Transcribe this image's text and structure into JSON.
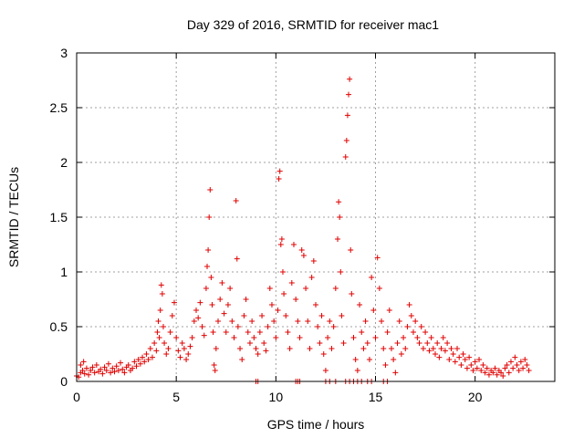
{
  "chart_data": {
    "type": "scatter",
    "title": "Day 329 of 2016, SRMTID for receiver mac1",
    "xlabel": "GPS time / hours",
    "ylabel": "SRMTID / TECUs",
    "xlim": [
      0,
      24
    ],
    "ylim": [
      0,
      3
    ],
    "xticks": [
      0,
      5,
      10,
      15,
      20
    ],
    "xtick_labels": [
      "0",
      "5",
      "10",
      "15",
      "20"
    ],
    "yticks": [
      0,
      0.5,
      1,
      1.5,
      2,
      2.5,
      3
    ],
    "ytick_labels": [
      "0",
      "0.5",
      "1",
      "1.5",
      "2",
      "2.5",
      "3"
    ],
    "grid": true,
    "legend": "none",
    "marker": "plus",
    "color": "#e00000",
    "series": [
      {
        "name": "SRMTID",
        "points": [
          [
            0.0,
            0.05
          ],
          [
            0.1,
            0.04
          ],
          [
            0.2,
            0.08
          ],
          [
            0.2,
            0.15
          ],
          [
            0.3,
            0.1
          ],
          [
            0.35,
            0.18
          ],
          [
            0.4,
            0.07
          ],
          [
            0.5,
            0.12
          ],
          [
            0.6,
            0.06
          ],
          [
            0.7,
            0.1
          ],
          [
            0.8,
            0.13
          ],
          [
            0.9,
            0.08
          ],
          [
            1.0,
            0.15
          ],
          [
            1.1,
            0.09
          ],
          [
            1.2,
            0.11
          ],
          [
            1.3,
            0.07
          ],
          [
            1.4,
            0.13
          ],
          [
            1.5,
            0.1
          ],
          [
            1.6,
            0.16
          ],
          [
            1.7,
            0.08
          ],
          [
            1.8,
            0.12
          ],
          [
            1.9,
            0.09
          ],
          [
            2.0,
            0.14
          ],
          [
            2.1,
            0.1
          ],
          [
            2.2,
            0.17
          ],
          [
            2.3,
            0.11
          ],
          [
            2.4,
            0.08
          ],
          [
            2.5,
            0.13
          ],
          [
            2.6,
            0.15
          ],
          [
            2.7,
            0.1
          ],
          [
            2.8,
            0.12
          ],
          [
            2.9,
            0.18
          ],
          [
            3.0,
            0.14
          ],
          [
            3.1,
            0.2
          ],
          [
            3.2,
            0.16
          ],
          [
            3.3,
            0.22
          ],
          [
            3.4,
            0.18
          ],
          [
            3.5,
            0.25
          ],
          [
            3.6,
            0.2
          ],
          [
            3.7,
            0.3
          ],
          [
            3.8,
            0.22
          ],
          [
            3.9,
            0.35
          ],
          [
            4.0,
            0.28
          ],
          [
            4.05,
            0.45
          ],
          [
            4.1,
            0.55
          ],
          [
            4.15,
            0.4
          ],
          [
            4.2,
            0.65
          ],
          [
            4.25,
            0.88
          ],
          [
            4.3,
            0.8
          ],
          [
            4.35,
            0.5
          ],
          [
            4.4,
            0.35
          ],
          [
            4.5,
            0.25
          ],
          [
            4.6,
            0.3
          ],
          [
            4.7,
            0.45
          ],
          [
            4.8,
            0.6
          ],
          [
            4.9,
            0.72
          ],
          [
            5.0,
            0.4
          ],
          [
            5.1,
            0.28
          ],
          [
            5.2,
            0.22
          ],
          [
            5.3,
            0.35
          ],
          [
            5.4,
            0.3
          ],
          [
            5.5,
            0.2
          ],
          [
            5.6,
            0.25
          ],
          [
            5.7,
            0.32
          ],
          [
            5.8,
            0.4
          ],
          [
            5.9,
            0.55
          ],
          [
            6.0,
            0.65
          ],
          [
            6.1,
            0.58
          ],
          [
            6.2,
            0.72
          ],
          [
            6.3,
            0.5
          ],
          [
            6.4,
            0.42
          ],
          [
            6.5,
            0.85
          ],
          [
            6.55,
            1.05
          ],
          [
            6.6,
            1.2
          ],
          [
            6.65,
            1.5
          ],
          [
            6.7,
            1.75
          ],
          [
            6.75,
            0.95
          ],
          [
            6.8,
            0.7
          ],
          [
            6.85,
            0.45
          ],
          [
            6.9,
            0.15
          ],
          [
            6.95,
            0.1
          ],
          [
            7.0,
            0.3
          ],
          [
            7.1,
            0.55
          ],
          [
            7.2,
            0.75
          ],
          [
            7.3,
            0.9
          ],
          [
            7.4,
            0.62
          ],
          [
            7.5,
            0.45
          ],
          [
            7.6,
            0.7
          ],
          [
            7.7,
            0.85
          ],
          [
            7.8,
            0.55
          ],
          [
            7.9,
            0.4
          ],
          [
            8.0,
            1.65
          ],
          [
            8.05,
            1.12
          ],
          [
            8.1,
            0.5
          ],
          [
            8.2,
            0.3
          ],
          [
            8.3,
            0.2
          ],
          [
            8.4,
            0.6
          ],
          [
            8.5,
            0.75
          ],
          [
            8.6,
            0.45
          ],
          [
            8.7,
            0.35
          ],
          [
            8.8,
            0.55
          ],
          [
            8.9,
            0.4
          ],
          [
            9.0,
            0.3
          ],
          [
            9.1,
            0.25
          ],
          [
            9.2,
            0.45
          ],
          [
            9.3,
            0.6
          ],
          [
            9.4,
            0.35
          ],
          [
            9.5,
            0.28
          ],
          [
            9.6,
            0.5
          ],
          [
            9.7,
            0.85
          ],
          [
            9.8,
            0.7
          ],
          [
            9.9,
            0.55
          ],
          [
            10.0,
            0.4
          ],
          [
            10.1,
            0.65
          ],
          [
            10.15,
            1.85
          ],
          [
            10.2,
            1.92
          ],
          [
            10.25,
            1.25
          ],
          [
            10.3,
            1.3
          ],
          [
            10.35,
            1.0
          ],
          [
            10.4,
            0.8
          ],
          [
            10.5,
            0.6
          ],
          [
            10.6,
            0.45
          ],
          [
            10.7,
            0.3
          ],
          [
            10.8,
            0.9
          ],
          [
            10.9,
            1.25
          ],
          [
            11.0,
            0.75
          ],
          [
            11.1,
            0.55
          ],
          [
            11.2,
            0.4
          ],
          [
            11.3,
            1.2
          ],
          [
            11.4,
            1.15
          ],
          [
            11.5,
            0.85
          ],
          [
            11.6,
            0.55
          ],
          [
            11.7,
            0.3
          ],
          [
            11.8,
            0.95
          ],
          [
            11.9,
            1.1
          ],
          [
            12.0,
            0.7
          ],
          [
            12.1,
            0.5
          ],
          [
            12.2,
            0.35
          ],
          [
            12.3,
            0.6
          ],
          [
            12.4,
            0.25
          ],
          [
            12.5,
            0.1
          ],
          [
            12.6,
            0.4
          ],
          [
            12.7,
            0.55
          ],
          [
            12.8,
            0.3
          ],
          [
            12.9,
            0.5
          ],
          [
            13.0,
            0.85
          ],
          [
            13.1,
            1.3
          ],
          [
            13.15,
            1.64
          ],
          [
            13.2,
            1.5
          ],
          [
            13.25,
            1.0
          ],
          [
            13.3,
            0.6
          ],
          [
            13.4,
            0.35
          ],
          [
            13.5,
            2.05
          ],
          [
            13.55,
            2.2
          ],
          [
            13.6,
            2.43
          ],
          [
            13.65,
            2.62
          ],
          [
            13.7,
            2.76
          ],
          [
            13.75,
            1.2
          ],
          [
            13.8,
            0.8
          ],
          [
            13.9,
            0.4
          ],
          [
            14.0,
            0.2
          ],
          [
            14.1,
            0.1
          ],
          [
            14.2,
            0.7
          ],
          [
            14.3,
            0.45
          ],
          [
            14.4,
            0.3
          ],
          [
            14.5,
            0.55
          ],
          [
            14.6,
            0.35
          ],
          [
            14.7,
            0.2
          ],
          [
            14.8,
            0.95
          ],
          [
            14.9,
            0.65
          ],
          [
            15.0,
            0.4
          ],
          [
            15.1,
            1.13
          ],
          [
            15.2,
            0.85
          ],
          [
            15.3,
            0.55
          ],
          [
            15.4,
            0.3
          ],
          [
            15.5,
            0.15
          ],
          [
            15.6,
            0.45
          ],
          [
            15.7,
            0.65
          ],
          [
            15.8,
            0.3
          ],
          [
            15.9,
            0.2
          ],
          [
            16.0,
            0.08
          ],
          [
            16.1,
            0.35
          ],
          [
            16.2,
            0.55
          ],
          [
            16.3,
            0.25
          ],
          [
            16.4,
            0.4
          ],
          [
            16.5,
            0.3
          ],
          [
            16.6,
            0.5
          ],
          [
            16.7,
            0.7
          ],
          [
            16.8,
            0.6
          ],
          [
            16.9,
            0.45
          ],
          [
            17.0,
            0.55
          ],
          [
            17.1,
            0.4
          ],
          [
            17.2,
            0.35
          ],
          [
            17.3,
            0.5
          ],
          [
            17.4,
            0.3
          ],
          [
            17.5,
            0.45
          ],
          [
            17.6,
            0.35
          ],
          [
            17.7,
            0.28
          ],
          [
            17.8,
            0.4
          ],
          [
            17.9,
            0.3
          ],
          [
            18.0,
            0.25
          ],
          [
            18.1,
            0.35
          ],
          [
            18.2,
            0.22
          ],
          [
            18.3,
            0.3
          ],
          [
            18.4,
            0.4
          ],
          [
            18.5,
            0.28
          ],
          [
            18.6,
            0.35
          ],
          [
            18.7,
            0.2
          ],
          [
            18.8,
            0.3
          ],
          [
            18.9,
            0.25
          ],
          [
            19.0,
            0.18
          ],
          [
            19.1,
            0.3
          ],
          [
            19.2,
            0.22
          ],
          [
            19.3,
            0.15
          ],
          [
            19.4,
            0.25
          ],
          [
            19.5,
            0.2
          ],
          [
            19.6,
            0.12
          ],
          [
            19.7,
            0.22
          ],
          [
            19.8,
            0.15
          ],
          [
            19.9,
            0.1
          ],
          [
            20.0,
            0.18
          ],
          [
            20.1,
            0.12
          ],
          [
            20.2,
            0.2
          ],
          [
            20.3,
            0.1
          ],
          [
            20.4,
            0.15
          ],
          [
            20.5,
            0.08
          ],
          [
            20.6,
            0.12
          ],
          [
            20.7,
            0.06
          ],
          [
            20.8,
            0.1
          ],
          [
            20.9,
            0.08
          ],
          [
            21.0,
            0.12
          ],
          [
            21.1,
            0.06
          ],
          [
            21.2,
            0.1
          ],
          [
            21.3,
            0.08
          ],
          [
            21.4,
            0.05
          ],
          [
            21.5,
            0.12
          ],
          [
            21.6,
            0.15
          ],
          [
            21.7,
            0.08
          ],
          [
            21.8,
            0.18
          ],
          [
            21.9,
            0.12
          ],
          [
            22.0,
            0.22
          ],
          [
            22.1,
            0.15
          ],
          [
            22.2,
            0.1
          ],
          [
            22.3,
            0.18
          ],
          [
            22.4,
            0.12
          ],
          [
            22.5,
            0.2
          ],
          [
            22.6,
            0.15
          ],
          [
            22.7,
            0.1
          ],
          [
            9.0,
            0.0
          ],
          [
            9.1,
            0.0
          ],
          [
            11.0,
            0.0
          ],
          [
            11.1,
            0.0
          ],
          [
            11.2,
            0.0
          ],
          [
            12.5,
            0.0
          ],
          [
            12.7,
            0.0
          ],
          [
            13.0,
            0.0
          ],
          [
            13.5,
            0.0
          ],
          [
            13.7,
            0.0
          ],
          [
            13.9,
            0.0
          ],
          [
            14.1,
            0.0
          ],
          [
            14.3,
            0.0
          ],
          [
            14.6,
            0.0
          ],
          [
            14.8,
            0.0
          ],
          [
            15.4,
            0.0
          ],
          [
            15.6,
            0.0
          ]
        ]
      }
    ]
  }
}
